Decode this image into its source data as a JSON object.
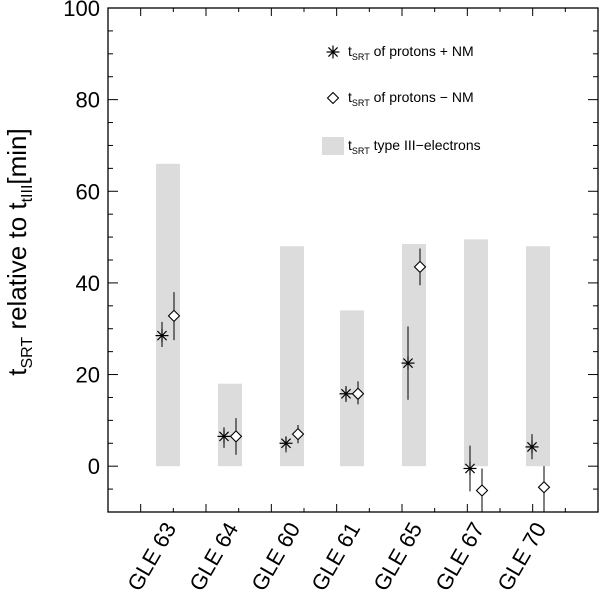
{
  "chart_data": {
    "type": "bar",
    "title": "",
    "xlabel": "",
    "ylabel": {
      "t": "t",
      "sub1": "SRT",
      "mid": " relative to t",
      "sub2": "tIII",
      "end": "[min]"
    },
    "ylim": [
      -10,
      100
    ],
    "yticks": [
      0,
      20,
      40,
      60,
      80,
      100
    ],
    "ytick_labels": [
      "0",
      "20",
      "40",
      "60",
      "80",
      "100"
    ],
    "categories": [
      "GLE 63",
      "GLE 64",
      "GLE 60",
      "GLE 61",
      "GLE 65",
      "GLE 67",
      "GLE 70"
    ],
    "colors": {
      "bar": "#dcdcdc",
      "marker": "#000000",
      "axis": "#000000"
    },
    "series": [
      {
        "name": "tSRT type III-electrons",
        "kind": "range-bar",
        "values": [
          [
            0,
            66
          ],
          [
            0,
            18
          ],
          [
            0,
            48
          ],
          [
            0,
            34
          ],
          [
            0,
            48.5
          ],
          [
            0,
            49.5
          ],
          [
            0,
            48
          ]
        ]
      },
      {
        "name": "tSRT of protons + NM",
        "kind": "asterisk",
        "values": [
          28.5,
          6.5,
          5,
          15.8,
          22.5,
          -0.5,
          4.2
        ],
        "err_low": [
          26,
          4,
          3,
          14,
          14.5,
          -5.5,
          1.5
        ],
        "err_high": [
          31.5,
          8.5,
          6.5,
          17.5,
          30.5,
          4.5,
          7
        ]
      },
      {
        "name": "tSRT of protons - NM",
        "kind": "diamond",
        "values": [
          32.8,
          6.5,
          7,
          15.8,
          43.5,
          -5.3,
          -4.6
        ],
        "err_low": [
          27.5,
          2.5,
          5,
          13.5,
          39.5,
          -10,
          -10
        ],
        "err_high": [
          38,
          10.5,
          9,
          18.5,
          47.5,
          -0.5,
          0
        ]
      }
    ],
    "legend": {
      "placement": "top-right",
      "entries": [
        {
          "marker": "asterisk",
          "t": "t",
          "sub": "SRT",
          "text": " of protons + NM"
        },
        {
          "marker": "diamond",
          "t": "t",
          "sub": "SRT",
          "text": " of protons − NM"
        },
        {
          "marker": "box",
          "t": "t",
          "sub": "SRT",
          "text": " type III−electrons"
        }
      ]
    }
  }
}
